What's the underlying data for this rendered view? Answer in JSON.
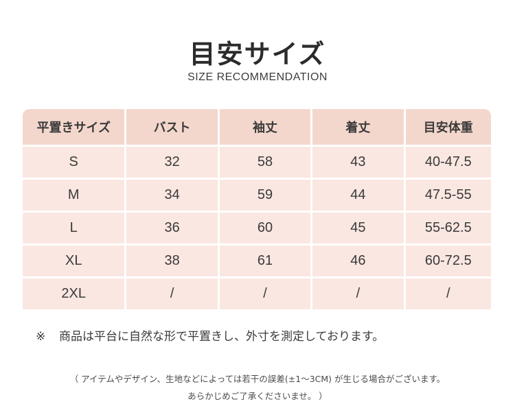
{
  "header": {
    "title": "目安サイズ",
    "subtitle": "SIZE RECOMMENDATION"
  },
  "table": {
    "columns": [
      "平置きサイズ",
      "バスト",
      "袖丈",
      "着丈",
      "目安体重"
    ],
    "rows": [
      [
        "S",
        "32",
        "58",
        "43",
        "40-47.5"
      ],
      [
        "M",
        "34",
        "59",
        "44",
        "47.5-55"
      ],
      [
        "L",
        "36",
        "60",
        "45",
        "55-62.5"
      ],
      [
        "XL",
        "38",
        "61",
        "46",
        "60-72.5"
      ],
      [
        "2XL",
        "/",
        "/",
        "/",
        "/"
      ]
    ]
  },
  "note": {
    "mark": "※",
    "text": "商品は平台に自然な形で平置きし、外寸を測定しております。"
  },
  "disclaimer": {
    "line1": "（ アイテムやデザイン、生地などによっては若干の誤差(±1～3CM) が生じる場合がございます。",
    "line2": "あらかじめご了承くださいませ。 ）"
  },
  "colors": {
    "header_cell": "#f4d7cc",
    "body_cell": "#fae7e1"
  }
}
